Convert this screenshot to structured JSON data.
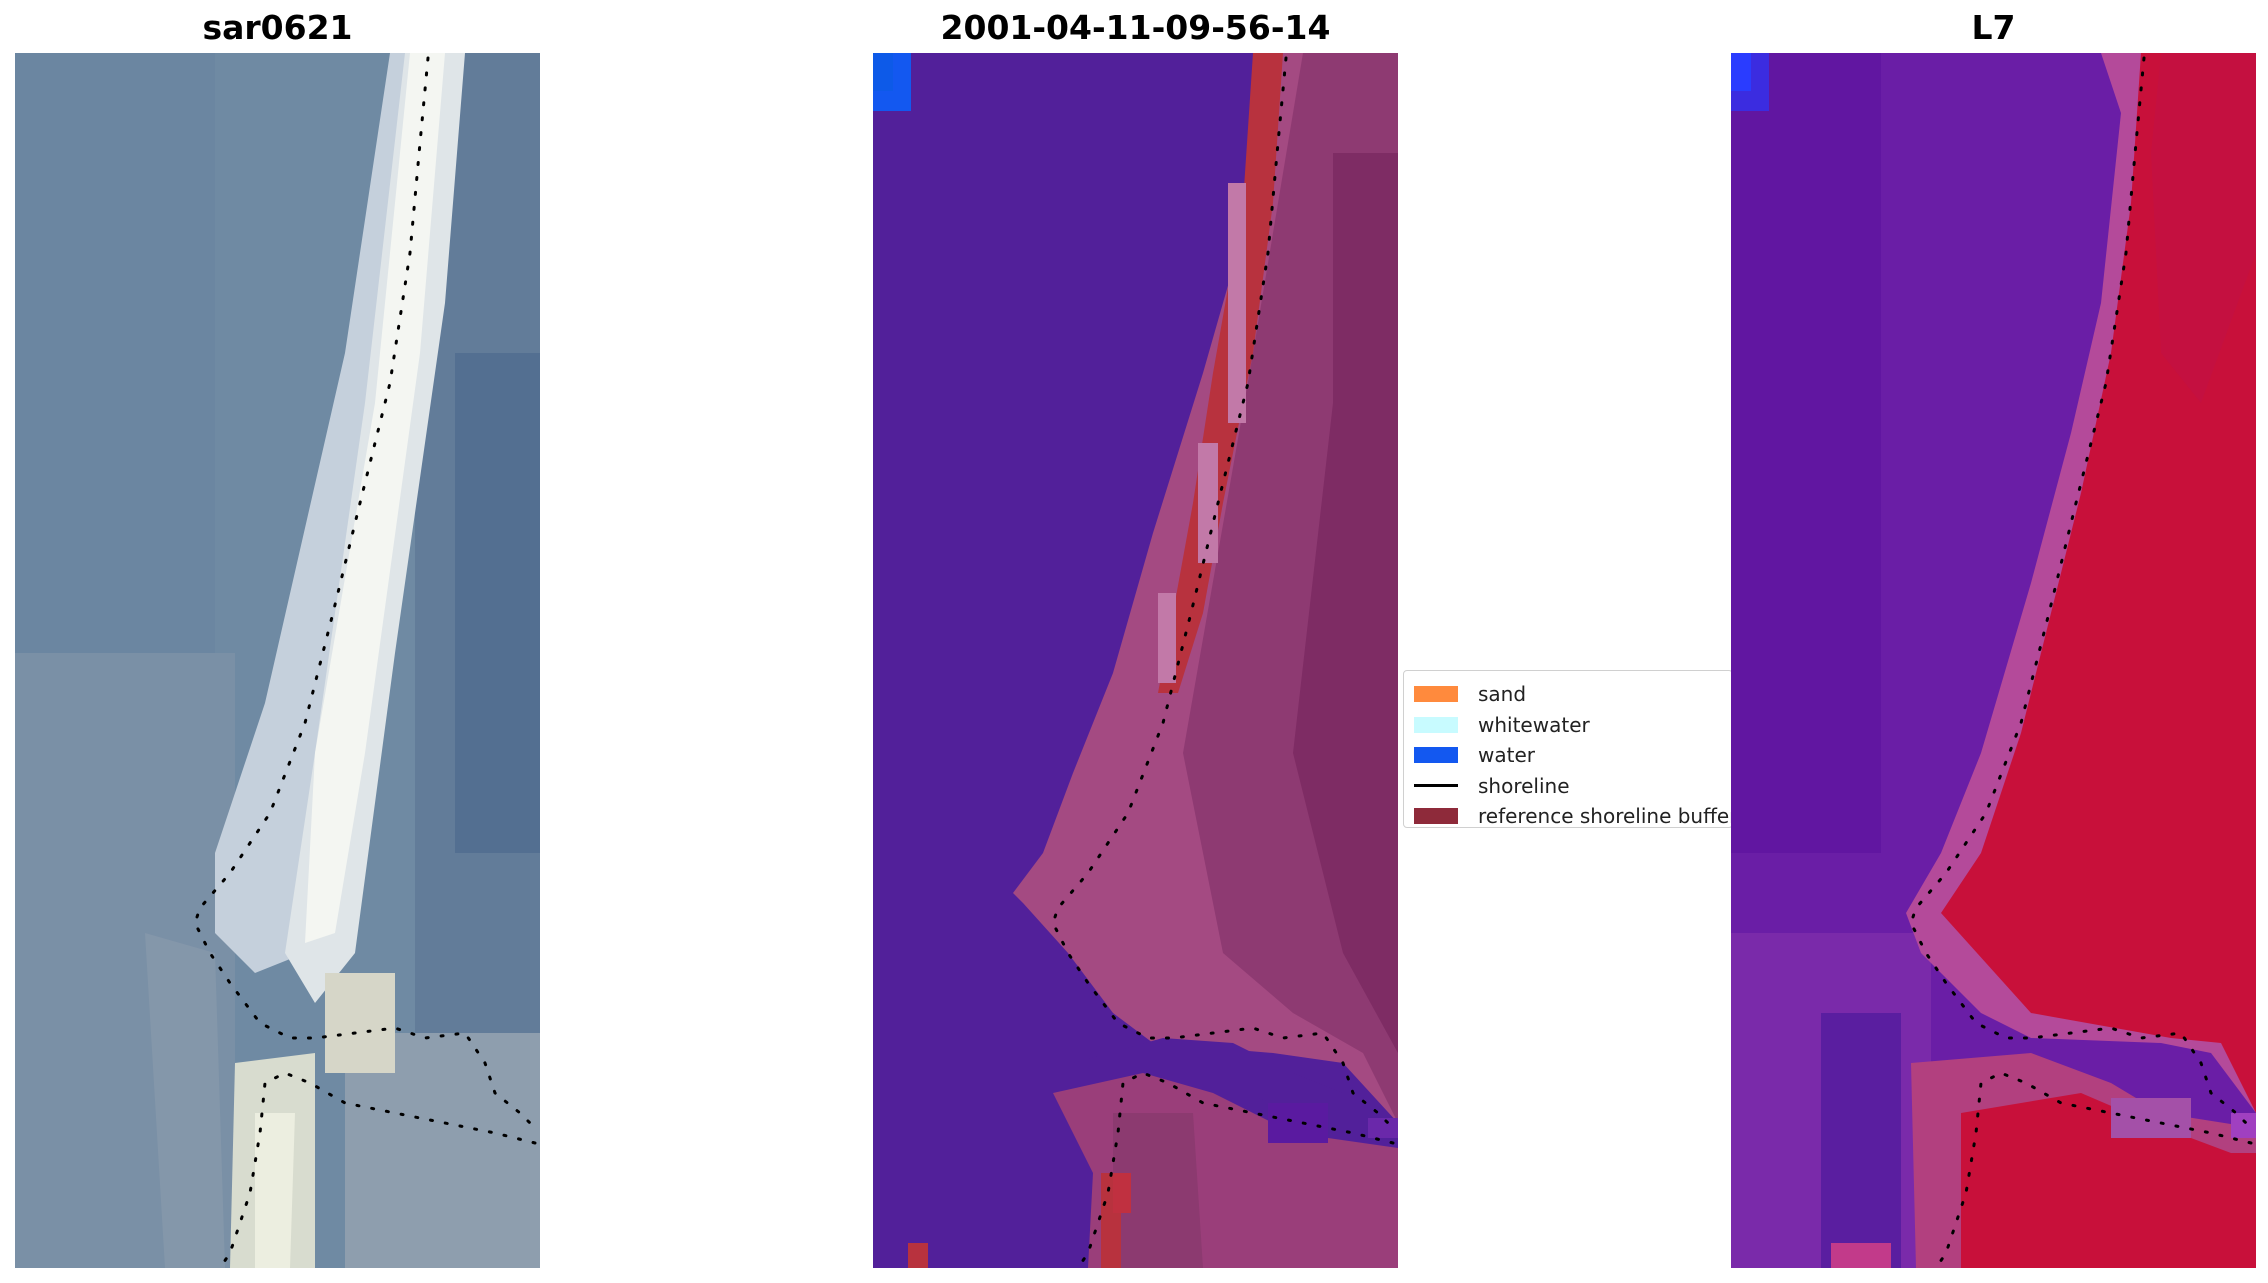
{
  "panels": {
    "left": {
      "title": "sar0621"
    },
    "middle": {
      "title": "2001-04-11-09-56-14"
    },
    "right": {
      "title": "L7"
    }
  },
  "legend": {
    "items": [
      {
        "label": "sand",
        "color": "#ff8a3d",
        "kind": "patch"
      },
      {
        "label": "whitewater",
        "color": "#c8fbff",
        "kind": "patch"
      },
      {
        "label": "water",
        "color": "#1358f0",
        "kind": "patch"
      },
      {
        "label": "shoreline",
        "color": "#000000",
        "kind": "line"
      },
      {
        "label": "reference shoreline buffer",
        "color": "#8e2a3a",
        "kind": "patch"
      }
    ]
  },
  "colors": {
    "rgb_sea": "#6c85a0",
    "rgb_beach": "#e8ecec",
    "class_sea": "#52209a",
    "class_land": "#8c3a70",
    "class_buffer": "#b8323e",
    "mndwi_water": "#5e1aa0",
    "mndwi_land": "#c8103a"
  }
}
